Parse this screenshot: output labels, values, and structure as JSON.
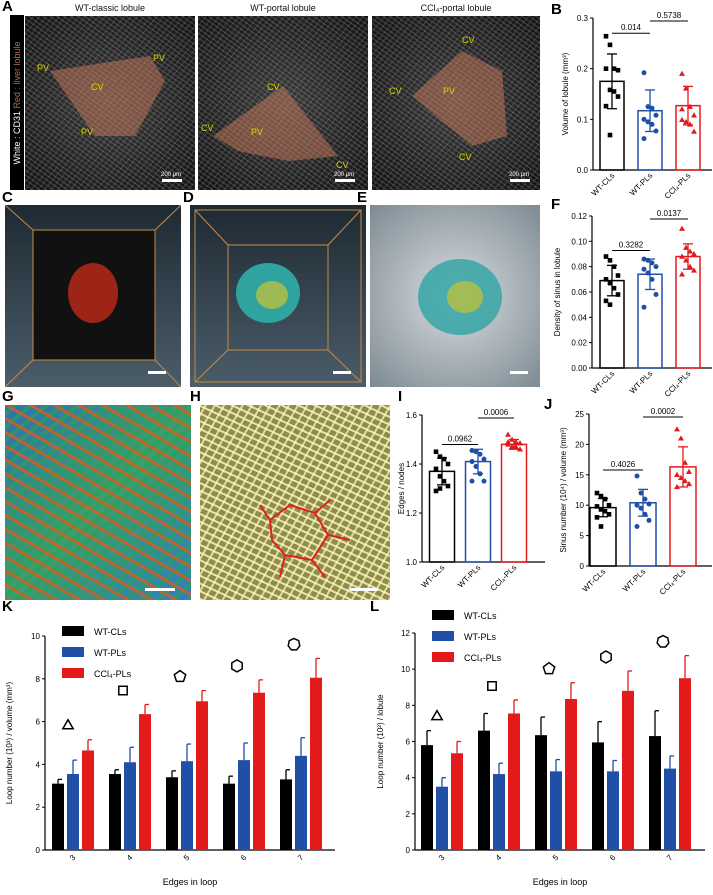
{
  "panel_labels": [
    "A",
    "B",
    "C",
    "D",
    "E",
    "F",
    "G",
    "H",
    "I",
    "J",
    "K",
    "L"
  ],
  "panel_a": {
    "side_label": {
      "white": "White : CD31",
      "red": "Red : liver lobule"
    },
    "titles": [
      "WT-classic lobule",
      "WT-portal lobule",
      "CCl₄-portal lobule"
    ],
    "scale_bar": "200 μm",
    "vessel_labels": [
      [
        "PV",
        "PV",
        "CV",
        "PV"
      ],
      [
        "CV",
        "CV",
        "PV",
        "CV"
      ],
      [
        "CV",
        "CV",
        "PV",
        "CV"
      ]
    ],
    "overlay_color": "#c8785a"
  },
  "colors": {
    "wt_cl": "#000000",
    "wt_pl": "#1f4fa6",
    "ccl4_pl": "#e31a1c"
  },
  "chart_data": [
    {
      "id": "B",
      "type": "bar",
      "style": "dot-bar",
      "categories": [
        "WT-CLs",
        "WT-PLs",
        "CCl₄-PLs"
      ],
      "ylabel": "Volume of lobule (mm³)",
      "ylim": [
        0,
        0.3
      ],
      "yticks": [
        "0.0",
        "0.1",
        "0.2",
        "0.3"
      ],
      "means": [
        0.175,
        0.117,
        0.127
      ],
      "sd": [
        0.054,
        0.041,
        0.038
      ],
      "points": [
        [
          0.264,
          0.247,
          0.2,
          0.197,
          0.2,
          0.158,
          0.155,
          0.145,
          0.126,
          0.069
        ],
        [
          0.192,
          0.125,
          0.122,
          0.108,
          0.1,
          0.095,
          0.09,
          0.077,
          0.062
        ],
        [
          0.19,
          0.161,
          0.125,
          0.108,
          0.099,
          0.095,
          0.09,
          0.076,
          0.12
        ]
      ],
      "comparisons": [
        {
          "pair": [
            0,
            1
          ],
          "p": "0.014"
        },
        {
          "pair": [
            1,
            2
          ],
          "p": "0.5738"
        }
      ]
    },
    {
      "id": "F",
      "type": "bar",
      "style": "dot-bar",
      "categories": [
        "WT-CLs",
        "WT-PLs",
        "CCl₄-PLs"
      ],
      "ylabel": "Density of sinus  in lobule",
      "ylim": [
        0,
        0.12
      ],
      "yticks": [
        "0.00",
        "0.02",
        "0.04",
        "0.06",
        "0.08",
        "0.10",
        "0.12"
      ],
      "means": [
        0.069,
        0.074,
        0.088
      ],
      "sd": [
        0.012,
        0.012,
        0.01
      ],
      "points": [
        [
          0.088,
          0.085,
          0.08,
          0.073,
          0.07,
          0.067,
          0.063,
          0.058,
          0.053,
          0.05
        ],
        [
          0.086,
          0.085,
          0.083,
          0.08,
          0.078,
          0.075,
          0.07,
          0.058,
          0.048
        ],
        [
          0.11,
          0.095,
          0.092,
          0.09,
          0.088,
          0.085,
          0.08,
          0.077,
          0.074
        ]
      ],
      "comparisons": [
        {
          "pair": [
            0,
            1
          ],
          "p": "0.3282"
        },
        {
          "pair": [
            1,
            2
          ],
          "p": "0.0137"
        }
      ]
    },
    {
      "id": "I",
      "type": "bar",
      "style": "dot-bar",
      "categories": [
        "WT-CLs",
        "WT-PLs",
        "CCl₄-PLs"
      ],
      "ylabel": "Edges / nodes",
      "ylim": [
        1.0,
        1.6
      ],
      "yticks": [
        "1.0",
        "1.2",
        "1.4",
        "1.6"
      ],
      "means": [
        1.37,
        1.41,
        1.48
      ],
      "sd": [
        0.055,
        0.05,
        0.02
      ],
      "points": [
        [
          1.45,
          1.43,
          1.42,
          1.4,
          1.38,
          1.35,
          1.33,
          1.31,
          1.29,
          1.3
        ],
        [
          1.455,
          1.45,
          1.44,
          1.42,
          1.41,
          1.39,
          1.36,
          1.33,
          1.33
        ],
        [
          1.52,
          1.5,
          1.49,
          1.485,
          1.48,
          1.47,
          1.47,
          1.46,
          1.49
        ]
      ],
      "comparisons": [
        {
          "pair": [
            0,
            1
          ],
          "p": "0.0962"
        },
        {
          "pair": [
            1,
            2
          ],
          "p": "0.0006"
        }
      ]
    },
    {
      "id": "J",
      "type": "bar",
      "style": "dot-bar",
      "categories": [
        "WT-CLs",
        "WT-PLs",
        "CCl₄-PLs"
      ],
      "ylabel": "Sinus number (10⁴) / volume (mm³)",
      "ylim": [
        0,
        25
      ],
      "yticks": [
        "0",
        "5",
        "10",
        "15",
        "20",
        "25"
      ],
      "means": [
        9.6,
        10.4,
        16.3
      ],
      "sd": [
        1.5,
        2.2,
        3.3
      ],
      "points": [
        [
          12,
          11.5,
          11,
          10,
          9.8,
          9.3,
          9,
          8.5,
          8,
          6.5
        ],
        [
          14.8,
          12,
          11,
          10.2,
          10,
          9.5,
          8.5,
          7.5,
          6.5
        ],
        [
          22.5,
          21,
          17,
          15.5,
          15,
          14.5,
          14,
          13.5,
          13
        ]
      ],
      "comparisons": [
        {
          "pair": [
            0,
            1
          ],
          "p": "0.4026"
        },
        {
          "pair": [
            1,
            2
          ],
          "p": "0.0002"
        }
      ]
    },
    {
      "id": "K",
      "type": "bar",
      "style": "grouped",
      "categories": [
        "3",
        "4",
        "5",
        "6",
        "7"
      ],
      "xlabel": "Edges in loop",
      "ylabel": "Loop number (10³) / volume (mm³)",
      "ylim": [
        0,
        10
      ],
      "yticks": [
        "0",
        "2",
        "4",
        "6",
        "8",
        "10"
      ],
      "shape_markers": [
        "triangle",
        "square",
        "pentagon",
        "hexagon",
        "heptagon"
      ],
      "legend": "top-left",
      "series": [
        {
          "name": "WT-CLs",
          "values": [
            3.1,
            3.55,
            3.4,
            3.1,
            3.3
          ],
          "error": [
            0.2,
            0.2,
            0.3,
            0.35,
            0.45
          ]
        },
        {
          "name": "WT-PLs",
          "values": [
            3.55,
            4.1,
            4.15,
            4.2,
            4.4
          ],
          "error": [
            0.65,
            0.7,
            0.8,
            0.8,
            0.85
          ]
        },
        {
          "name": "CCl₄-PLs",
          "values": [
            4.65,
            6.35,
            6.95,
            7.35,
            8.05
          ],
          "error": [
            0.5,
            0.45,
            0.5,
            0.6,
            0.9
          ]
        }
      ]
    },
    {
      "id": "L",
      "type": "bar",
      "style": "grouped",
      "categories": [
        "3",
        "4",
        "5",
        "6",
        "7"
      ],
      "xlabel": "Edges in loop",
      "ylabel": "Loop number (10²) / lobule",
      "ylim": [
        0,
        12
      ],
      "yticks": [
        "0",
        "2",
        "4",
        "6",
        "8",
        "10",
        "12"
      ],
      "shape_markers": [
        "triangle",
        "square",
        "pentagon",
        "hexagon",
        "heptagon"
      ],
      "legend": "top-left",
      "series": [
        {
          "name": "WT-CLs",
          "values": [
            5.8,
            6.6,
            6.35,
            5.95,
            6.3
          ],
          "error": [
            0.8,
            0.95,
            1.0,
            1.15,
            1.4
          ]
        },
        {
          "name": "WT-PLs",
          "values": [
            3.5,
            4.2,
            4.35,
            4.35,
            4.5
          ],
          "error": [
            0.5,
            0.6,
            0.65,
            0.6,
            0.7
          ]
        },
        {
          "name": "CCl₄-PLs",
          "values": [
            5.35,
            7.55,
            8.35,
            8.8,
            9.5
          ],
          "error": [
            0.65,
            0.75,
            0.9,
            1.1,
            1.25
          ]
        }
      ]
    }
  ]
}
